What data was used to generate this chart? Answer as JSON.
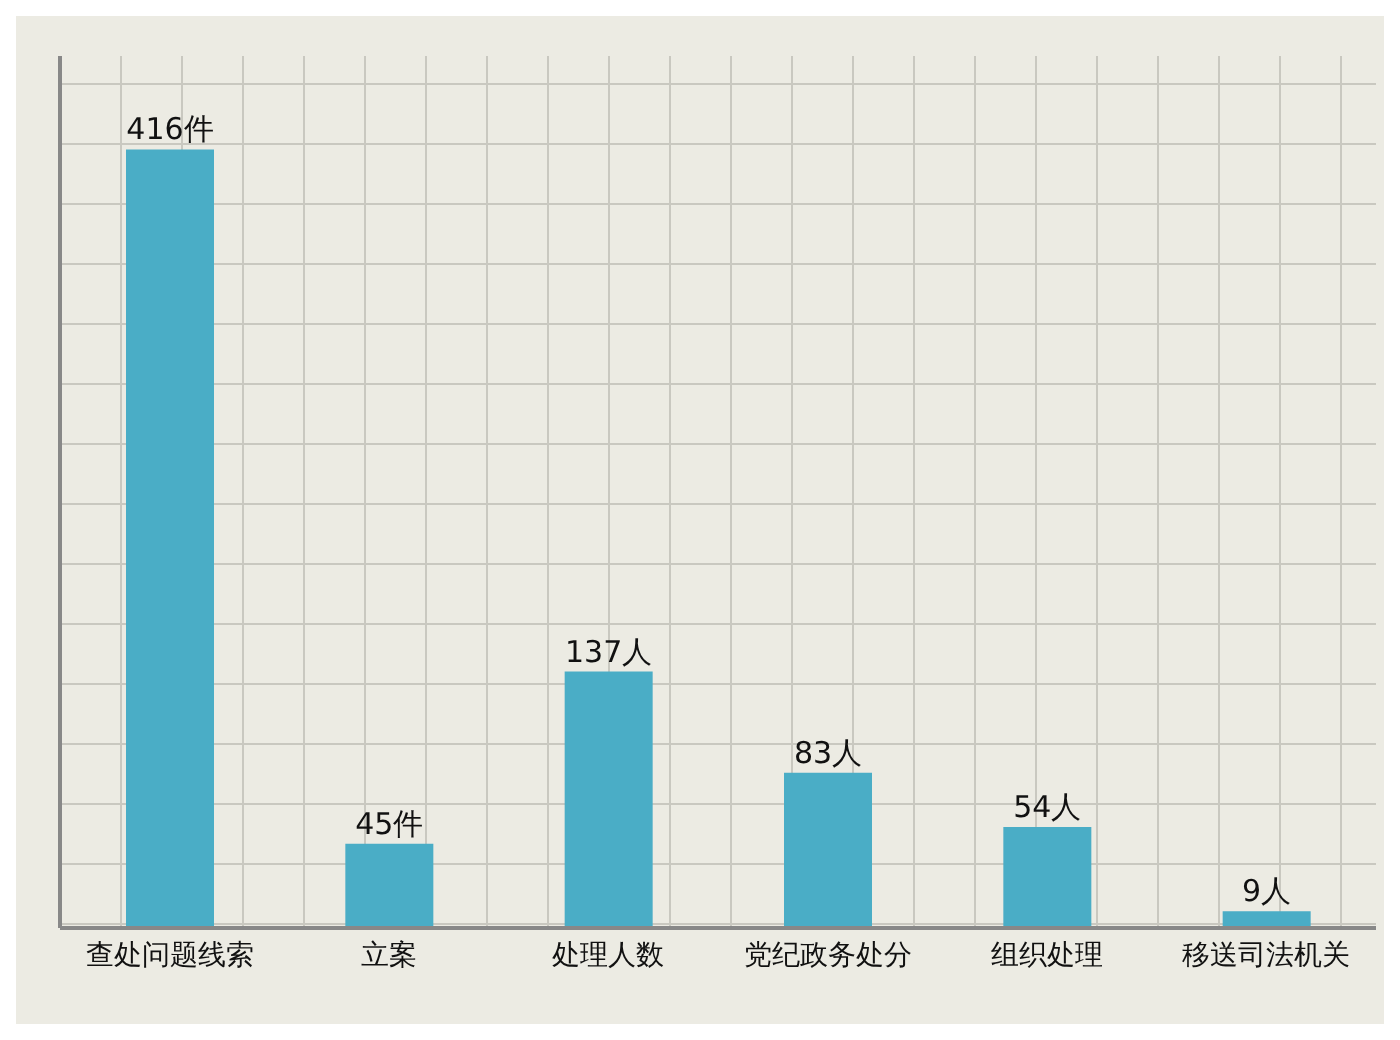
{
  "chart_data": {
    "type": "bar",
    "categories": [
      "查处问题线索",
      "立案",
      "处理人数",
      "党纪政务处分",
      "组织处理",
      "移送司法机关"
    ],
    "values": [
      416,
      45,
      137,
      83,
      54,
      9
    ],
    "value_labels": [
      "416件",
      "45件",
      "137人",
      "83人",
      "54人",
      "9人"
    ],
    "color": "#4aadc6",
    "relative": false,
    "grid": true,
    "tick_labels": "x"
  }
}
